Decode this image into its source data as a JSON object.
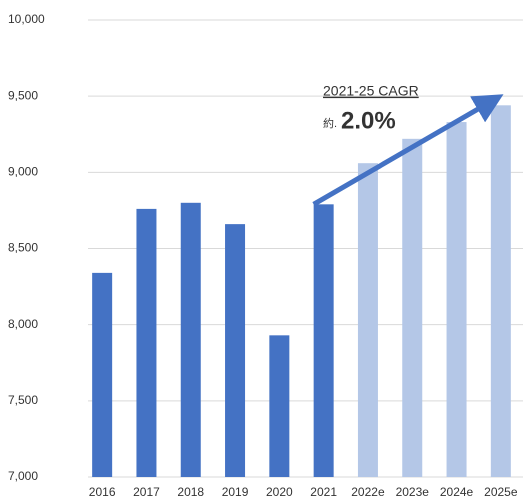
{
  "chart_data": {
    "type": "bar",
    "categories": [
      "2016",
      "2017",
      "2018",
      "2019",
      "2020",
      "2021",
      "2022e",
      "2023e",
      "2024e",
      "2025e"
    ],
    "values": [
      8340,
      8760,
      8800,
      8660,
      7930,
      8790,
      9060,
      9220,
      9330,
      9440
    ],
    "colors": [
      "#4472c4",
      "#4472c4",
      "#4472c4",
      "#4472c4",
      "#4472c4",
      "#4472c4",
      "#b4c7e7",
      "#b4c7e7",
      "#b4c7e7",
      "#b4c7e7"
    ],
    "ylim": [
      7000,
      10000
    ],
    "yticks": [
      {
        "value": 7000,
        "label": "7,000"
      },
      {
        "value": 7500,
        "label": "7,500"
      },
      {
        "value": 8000,
        "label": "8,000"
      },
      {
        "value": 8500,
        "label": "8,500"
      },
      {
        "value": 9000,
        "label": "9,000"
      },
      {
        "value": 9500,
        "label": "9,500"
      },
      {
        "value": 10000,
        "label": "10,000"
      }
    ],
    "grid": true,
    "annotation": {
      "title": "2021-25 CAGR",
      "prefix": "約.",
      "value": "2.0%"
    }
  }
}
